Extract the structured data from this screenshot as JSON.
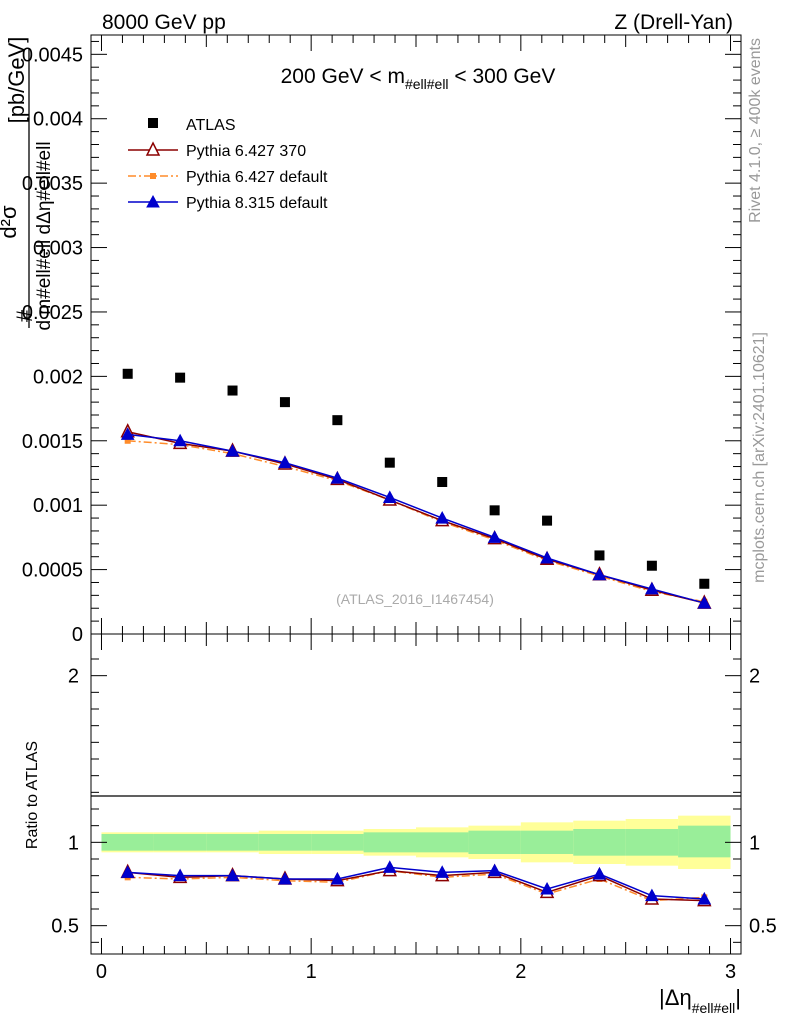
{
  "header": {
    "left": "8000 GeV pp",
    "right": "Z (Drell-Yan)"
  },
  "side_labels": {
    "rivet": "Rivet 4.1.0, ≥ 400k events",
    "mcplots": "mcplots.cern.ch [arXiv:2401.10621]"
  },
  "chart_data": {
    "type": "scatter",
    "title": "200 GeV < m_#ell#ell < 300 GeV",
    "title_parts": {
      "prefix": "200 GeV < m",
      "sub": "#ell#ell",
      "suffix": " < 300 GeV"
    },
    "ylabel": "d²σ / d m_#ell#ell dΔη_#ell#ell [pb/GeV]",
    "ylabel_parts": {
      "hash": "#",
      "num": "d²σ",
      "den": "d m#ell#ell dΔη#ell#ell",
      "unit": "[pb/GeV]"
    },
    "xlabel": "|Δη_#ell#ell|",
    "xlabel_parts": {
      "main": "|Δη",
      "sub": "#ell#ell",
      "end": "|"
    },
    "ratio_ylabel": "Ratio to ATLAS",
    "watermark": "(ATLAS_2016_I1467454)",
    "xlim": [
      -0.05,
      3.05
    ],
    "ylim": [
      0,
      0.00465
    ],
    "ratio_ylim": [
      0.33,
      2.25
    ],
    "x_ticks": [
      0,
      1,
      2,
      3
    ],
    "x_tick_labels": [
      "0",
      "1",
      "2",
      "3"
    ],
    "y_ticks": [
      0,
      0.0005,
      0.001,
      0.0015,
      0.002,
      0.0025,
      0.003,
      0.0035,
      0.004,
      0.0045
    ],
    "y_tick_labels": [
      "0",
      "0.0005",
      "0.001",
      "0.0015",
      "0.002",
      "0.0025",
      "0.003",
      "0.0035",
      "0.004",
      "0.0045"
    ],
    "ratio_ticks": [
      0.5,
      1,
      2
    ],
    "ratio_tick_labels": [
      "0.5",
      "1",
      "2"
    ],
    "x": [
      0.125,
      0.375,
      0.625,
      0.875,
      1.125,
      1.375,
      1.625,
      1.875,
      2.125,
      2.375,
      2.625,
      2.875
    ],
    "bin_edges": [
      0,
      0.25,
      0.5,
      0.75,
      1.0,
      1.25,
      1.5,
      1.75,
      2.0,
      2.25,
      2.5,
      2.75,
      3.0
    ],
    "series": [
      {
        "name": "ATLAS",
        "marker": "square",
        "color": "#000000",
        "values": [
          0.00202,
          0.00199,
          0.00189,
          0.0018,
          0.00166,
          0.00133,
          0.00118,
          0.00096,
          0.00088,
          0.00061,
          0.00053,
          0.00039
        ]
      },
      {
        "name": "Pythia 6.427 370",
        "marker": "open-triangle",
        "color": "#8b0000",
        "line": "solid",
        "values": [
          0.00157,
          0.00148,
          0.00142,
          0.00132,
          0.0012,
          0.00104,
          0.00088,
          0.00074,
          0.00058,
          0.00046,
          0.00034,
          0.00024
        ]
      },
      {
        "name": "Pythia 6.427 default",
        "marker": "small-square",
        "color": "#ff8c2a",
        "line": "dashdot",
        "values": [
          0.0015,
          0.00147,
          0.0014,
          0.0013,
          0.00119,
          0.00104,
          0.00087,
          0.00073,
          0.00057,
          0.00045,
          0.00033,
          0.00025
        ]
      },
      {
        "name": "Pythia 8.315 default",
        "marker": "filled-triangle",
        "color": "#0000cc",
        "line": "solid",
        "values": [
          0.00155,
          0.0015,
          0.00142,
          0.00133,
          0.00121,
          0.00106,
          0.0009,
          0.00075,
          0.00059,
          0.00046,
          0.00035,
          0.00024
        ]
      }
    ],
    "ratio_series": [
      {
        "name": "Pythia 6.427 370",
        "values": [
          0.82,
          0.79,
          0.8,
          0.78,
          0.77,
          0.83,
          0.8,
          0.82,
          0.7,
          0.8,
          0.66,
          0.65
        ]
      },
      {
        "name": "Pythia 6.427 default",
        "values": [
          0.79,
          0.78,
          0.79,
          0.77,
          0.76,
          0.83,
          0.79,
          0.81,
          0.69,
          0.78,
          0.65,
          0.67
        ]
      },
      {
        "name": "Pythia 8.315 default",
        "values": [
          0.82,
          0.8,
          0.8,
          0.78,
          0.78,
          0.85,
          0.82,
          0.83,
          0.72,
          0.81,
          0.68,
          0.66
        ]
      }
    ],
    "ratio_band_inner": [
      [
        0.95,
        1.05
      ],
      [
        0.95,
        1.05
      ],
      [
        0.95,
        1.05
      ],
      [
        0.95,
        1.05
      ],
      [
        0.95,
        1.05
      ],
      [
        0.94,
        1.06
      ],
      [
        0.94,
        1.06
      ],
      [
        0.93,
        1.07
      ],
      [
        0.93,
        1.07
      ],
      [
        0.92,
        1.08
      ],
      [
        0.92,
        1.08
      ],
      [
        0.91,
        1.1
      ]
    ],
    "ratio_band_outer": [
      [
        0.94,
        1.06
      ],
      [
        0.94,
        1.06
      ],
      [
        0.94,
        1.06
      ],
      [
        0.93,
        1.07
      ],
      [
        0.93,
        1.07
      ],
      [
        0.92,
        1.08
      ],
      [
        0.91,
        1.09
      ],
      [
        0.9,
        1.1
      ],
      [
        0.88,
        1.12
      ],
      [
        0.87,
        1.13
      ],
      [
        0.86,
        1.14
      ],
      [
        0.84,
        1.16
      ]
    ],
    "band_colors": {
      "inner": "#99ee99",
      "outer": "#ffff99"
    }
  }
}
